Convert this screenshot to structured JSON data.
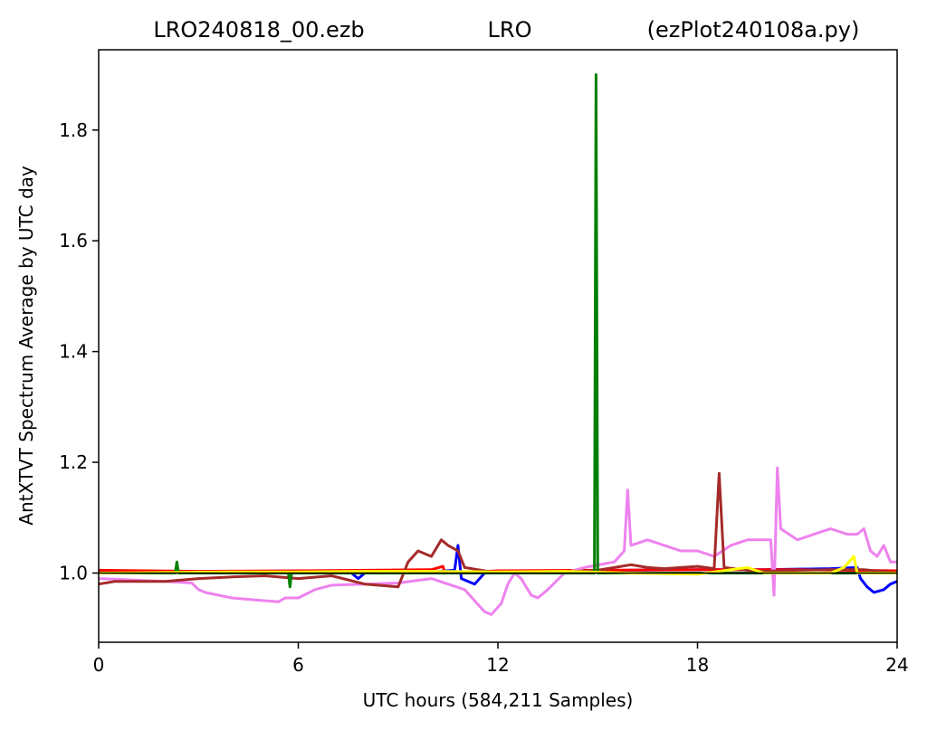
{
  "header": {
    "left": "LRO240818_00.ezb",
    "center": "LRO",
    "right": "(ezPlot240108a.py)"
  },
  "chart_data": {
    "type": "line",
    "title": "",
    "xlabel": "UTC hours  (584,211 Samples)",
    "ylabel": "AntXTVT Spectrum Average by UTC day",
    "xlim": [
      0,
      24
    ],
    "ylim": [
      0.875,
      1.945
    ],
    "x_ticks": [
      0,
      6,
      12,
      18,
      24
    ],
    "x_tick_labels": [
      "0",
      "6",
      "12",
      "18",
      "24"
    ],
    "y_ticks": [
      1.0,
      1.2,
      1.4,
      1.6,
      1.8
    ],
    "y_tick_labels": [
      "1.0",
      "1.2",
      "1.4",
      "1.6",
      "1.8"
    ],
    "grid": false,
    "series": [
      {
        "color": "#0000ff",
        "points": [
          [
            0,
            1.002
          ],
          [
            2,
            1.001
          ],
          [
            4,
            1.001
          ],
          [
            6,
            1.002
          ],
          [
            7.6,
            1.0
          ],
          [
            7.8,
            0.99
          ],
          [
            8,
            1.0
          ],
          [
            10,
            1.002
          ],
          [
            10.7,
            1.005
          ],
          [
            10.8,
            1.05
          ],
          [
            10.9,
            0.99
          ],
          [
            11.3,
            0.98
          ],
          [
            11.6,
            1.0
          ],
          [
            14,
            1.003
          ],
          [
            16,
            1.005
          ],
          [
            18,
            1.006
          ],
          [
            20,
            1.006
          ],
          [
            22,
            1.008
          ],
          [
            22.8,
            1.01
          ],
          [
            22.9,
            0.99
          ],
          [
            23.1,
            0.975
          ],
          [
            23.3,
            0.965
          ],
          [
            23.6,
            0.97
          ],
          [
            23.8,
            0.98
          ],
          [
            24,
            0.985
          ]
        ]
      },
      {
        "color": "#ff0000",
        "points": [
          [
            0,
            1.005
          ],
          [
            3,
            1.003
          ],
          [
            6,
            1.004
          ],
          [
            10,
            1.006
          ],
          [
            10.35,
            1.012
          ],
          [
            10.4,
            1.0
          ],
          [
            12,
            1.004
          ],
          [
            15,
            1.005
          ],
          [
            18,
            1.006
          ],
          [
            21,
            1.006
          ],
          [
            24,
            1.004
          ]
        ]
      },
      {
        "color": "#ee82ee",
        "points": [
          [
            0,
            0.99
          ],
          [
            2,
            0.985
          ],
          [
            2.8,
            0.982
          ],
          [
            3.0,
            0.97
          ],
          [
            3.2,
            0.965
          ],
          [
            4,
            0.955
          ],
          [
            5,
            0.95
          ],
          [
            5.4,
            0.948
          ],
          [
            5.6,
            0.955
          ],
          [
            6,
            0.955
          ],
          [
            6.5,
            0.97
          ],
          [
            7,
            0.978
          ],
          [
            8,
            0.98
          ],
          [
            9,
            0.982
          ],
          [
            10,
            0.99
          ],
          [
            11,
            0.97
          ],
          [
            11.3,
            0.95
          ],
          [
            11.6,
            0.93
          ],
          [
            11.8,
            0.925
          ],
          [
            12.1,
            0.945
          ],
          [
            12.3,
            0.98
          ],
          [
            12.5,
            1.0
          ],
          [
            12.7,
            0.99
          ],
          [
            13,
            0.96
          ],
          [
            13.2,
            0.955
          ],
          [
            13.5,
            0.97
          ],
          [
            14,
            1.0
          ],
          [
            14.6,
            1.01
          ],
          [
            15.5,
            1.02
          ],
          [
            15.8,
            1.04
          ],
          [
            15.9,
            1.15
          ],
          [
            16,
            1.05
          ],
          [
            16.5,
            1.06
          ],
          [
            17,
            1.05
          ],
          [
            17.5,
            1.04
          ],
          [
            18,
            1.04
          ],
          [
            18.5,
            1.03
          ],
          [
            19,
            1.05
          ],
          [
            19.5,
            1.06
          ],
          [
            20,
            1.06
          ],
          [
            20.2,
            1.06
          ],
          [
            20.3,
            0.96
          ],
          [
            20.4,
            1.19
          ],
          [
            20.5,
            1.08
          ],
          [
            21,
            1.06
          ],
          [
            21.5,
            1.07
          ],
          [
            22,
            1.08
          ],
          [
            22.5,
            1.07
          ],
          [
            22.8,
            1.07
          ],
          [
            23,
            1.08
          ],
          [
            23.2,
            1.04
          ],
          [
            23.4,
            1.03
          ],
          [
            23.6,
            1.05
          ],
          [
            23.8,
            1.02
          ],
          [
            24,
            1.02
          ]
        ]
      },
      {
        "color": "#a52a2a",
        "points": [
          [
            0,
            0.98
          ],
          [
            0.5,
            0.985
          ],
          [
            1,
            0.985
          ],
          [
            2,
            0.985
          ],
          [
            3,
            0.99
          ],
          [
            4,
            0.993
          ],
          [
            5,
            0.995
          ],
          [
            6,
            0.99
          ],
          [
            7,
            0.995
          ],
          [
            8,
            0.98
          ],
          [
            9,
            0.975
          ],
          [
            9.3,
            1.02
          ],
          [
            9.6,
            1.04
          ],
          [
            10,
            1.03
          ],
          [
            10.3,
            1.06
          ],
          [
            10.5,
            1.05
          ],
          [
            10.8,
            1.04
          ],
          [
            11,
            1.01
          ],
          [
            12,
            1.0
          ],
          [
            13,
            1.0
          ],
          [
            14,
            1.002
          ],
          [
            15,
            1.005
          ],
          [
            15.5,
            1.01
          ],
          [
            16,
            1.015
          ],
          [
            16.5,
            1.01
          ],
          [
            17,
            1.008
          ],
          [
            17.5,
            1.01
          ],
          [
            18,
            1.012
          ],
          [
            18.5,
            1.008
          ],
          [
            18.65,
            1.18
          ],
          [
            18.8,
            1.01
          ],
          [
            19.5,
            1.005
          ],
          [
            20,
            1.003
          ],
          [
            21,
            1.005
          ],
          [
            22,
            1.006
          ],
          [
            23,
            1.006
          ],
          [
            24,
            1.0
          ]
        ]
      },
      {
        "color": "#008000",
        "points": [
          [
            0,
            1.0
          ],
          [
            2.3,
            1.0
          ],
          [
            2.35,
            1.02
          ],
          [
            2.4,
            1.0
          ],
          [
            5.7,
            1.0
          ],
          [
            5.75,
            0.975
          ],
          [
            5.8,
            1.0
          ],
          [
            14.9,
            1.0
          ],
          [
            14.95,
            1.9
          ],
          [
            15.0,
            1.0
          ],
          [
            24,
            1.0
          ]
        ]
      },
      {
        "color": "#ffff00",
        "points": [
          [
            0,
            1.0
          ],
          [
            2,
            1.001
          ],
          [
            4,
            1.002
          ],
          [
            6,
            1.002
          ],
          [
            8,
            1.003
          ],
          [
            10,
            1.003
          ],
          [
            12,
            1.002
          ],
          [
            14,
            1.003
          ],
          [
            16,
            1.0
          ],
          [
            18,
            0.998
          ],
          [
            19.5,
            1.01
          ],
          [
            20,
            1.0
          ],
          [
            22,
            1.0
          ],
          [
            22.4,
            1.01
          ],
          [
            22.7,
            1.03
          ],
          [
            22.8,
            1.0
          ],
          [
            24,
            1.0
          ]
        ]
      },
      {
        "color": "#000000",
        "points": [
          [
            0,
            1.0
          ],
          [
            24,
            1.0
          ]
        ]
      }
    ]
  }
}
